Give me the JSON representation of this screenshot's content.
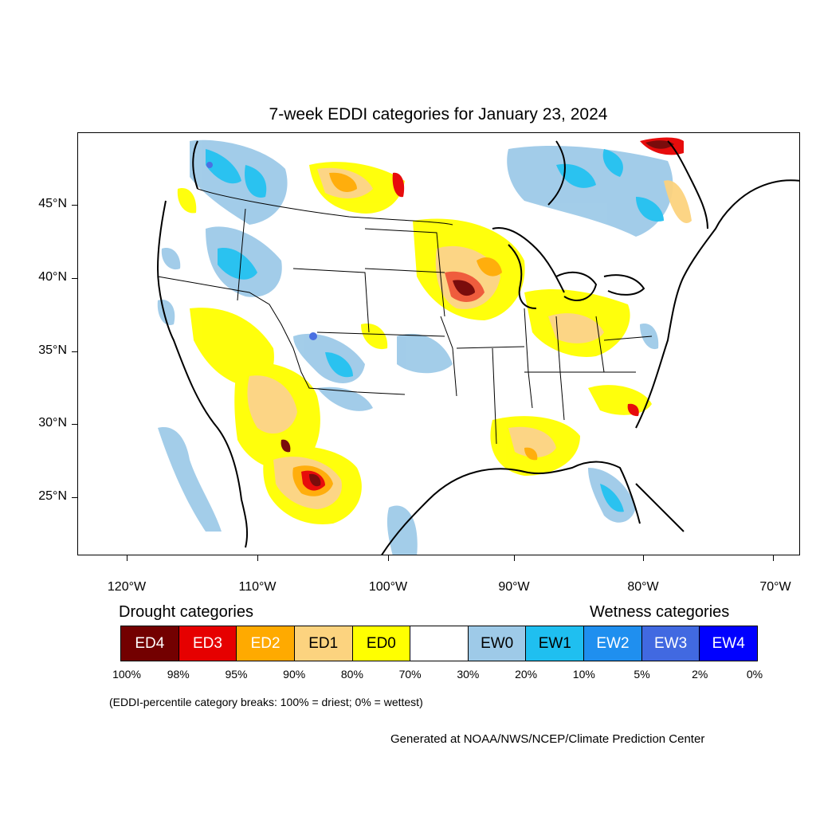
{
  "title": "7-week EDDI categories for January 23, 2024",
  "map": {
    "lat_labels": [
      "45°N",
      "40°N",
      "35°N",
      "30°N",
      "25°N"
    ],
    "lon_labels": [
      "120°W",
      "110°W",
      "100°W",
      "90°W",
      "80°W",
      "70°W"
    ]
  },
  "legend": {
    "drought_heading": "Drought categories",
    "wetness_heading": "Wetness categories",
    "categories": [
      {
        "label": "ED4",
        "color": "#730000",
        "text_color": "#ffffff"
      },
      {
        "label": "ED3",
        "color": "#e60000",
        "text_color": "#ffffff"
      },
      {
        "label": "ED2",
        "color": "#ffaa00",
        "text_color": "#ffffff"
      },
      {
        "label": "ED1",
        "color": "#fcd37f",
        "text_color": "#000000"
      },
      {
        "label": "ED0",
        "color": "#ffff00",
        "text_color": "#000000"
      },
      {
        "label": "",
        "color": "#ffffff",
        "text_color": "#000000"
      },
      {
        "label": "EW0",
        "color": "#9ecae8",
        "text_color": "#000000"
      },
      {
        "label": "EW1",
        "color": "#1fbff0",
        "text_color": "#000000"
      },
      {
        "label": "EW2",
        "color": "#1f8fef",
        "text_color": "#ffffff"
      },
      {
        "label": "EW3",
        "color": "#4169e1",
        "text_color": "#ffffff"
      },
      {
        "label": "EW4",
        "color": "#0000ff",
        "text_color": "#ffffff"
      }
    ],
    "breaks": [
      "100%",
      "98%",
      "95%",
      "90%",
      "80%",
      "70%",
      "30%",
      "20%",
      "10%",
      "5%",
      "2%",
      "0%"
    ]
  },
  "note": "(EDDI-percentile category breaks: 100% = driest; 0% = wettest)",
  "credit": "Generated at NOAA/NWS/NCEP/Climate Prediction Center"
}
